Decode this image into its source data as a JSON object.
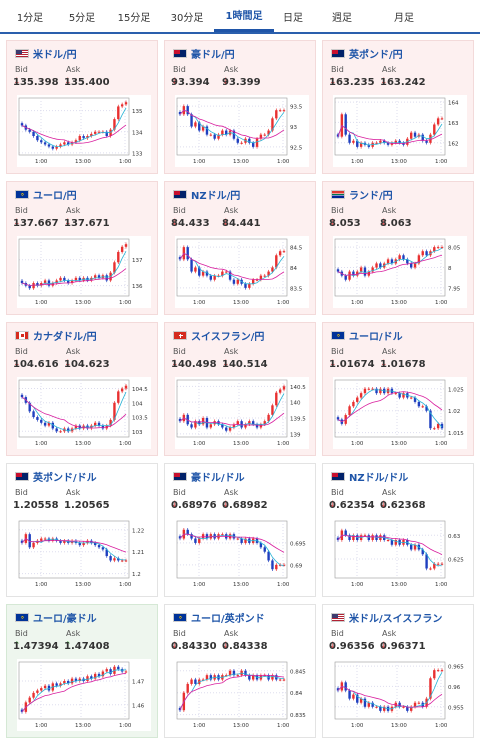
{
  "tabs": [
    {
      "label": "1分足",
      "active": false
    },
    {
      "label": "5分足",
      "active": false
    },
    {
      "label": "15分足",
      "active": false
    },
    {
      "label": "30分足",
      "active": false
    },
    {
      "label": "1時間足",
      "active": true
    },
    {
      "label": "日足",
      "active": false
    },
    {
      "label": "週足",
      "active": false
    },
    {
      "label": "月足",
      "active": false
    }
  ],
  "labels": {
    "bid": "Bid",
    "ask": "Ask"
  },
  "colors": {
    "up": "#e83030",
    "down": "#1f3fbf",
    "ma_short": "#28b4d6",
    "ma_long": "#d81e9e",
    "link": "#1f55a8"
  },
  "cards": [
    {
      "name": "米ドル/円",
      "bid": "135.398",
      "ask": "135.400",
      "dir": "down",
      "bg": "pink",
      "flag": "us",
      "yticks": [
        "135",
        "134",
        "133"
      ],
      "xticks": [
        "1:00",
        "13:00",
        "1:00"
      ],
      "series": [
        134.3,
        134.1,
        134.0,
        133.8,
        133.6,
        133.5,
        133.4,
        133.3,
        133.2,
        133.3,
        133.4,
        133.5,
        133.4,
        133.5,
        133.6,
        133.8,
        133.7,
        133.8,
        133.9,
        134.0,
        134.0,
        134.0,
        133.8,
        134.1,
        134.6,
        135.2,
        135.3,
        135.4
      ],
      "ylim": [
        132.9,
        135.6
      ]
    },
    {
      "name": "豪ドル/円",
      "bid": "93.394",
      "ask": "93.399",
      "dir": "down",
      "bg": "pink",
      "flag": "au",
      "yticks": [
        "93.5",
        "93",
        "92.5"
      ],
      "xticks": [
        "1:00",
        "13:00",
        "1:00"
      ],
      "series": [
        93.3,
        93.5,
        93.3,
        93.0,
        93.1,
        92.9,
        93.0,
        92.8,
        92.8,
        92.7,
        92.8,
        92.9,
        92.8,
        92.9,
        92.7,
        92.6,
        92.6,
        92.7,
        92.6,
        92.5,
        92.7,
        92.8,
        92.8,
        92.9,
        93.2,
        93.4,
        93.4,
        93.4
      ],
      "ylim": [
        92.3,
        93.7
      ]
    },
    {
      "name": "英ポンド/円",
      "bid": "163.235",
      "ask": "163.242",
      "dir": "down",
      "bg": "pink",
      "flag": "gb",
      "yticks": [
        "164",
        "163",
        "162"
      ],
      "xticks": [
        "1:00",
        "13:00",
        "1:00"
      ],
      "series": [
        162.3,
        163.4,
        162.4,
        162.0,
        162.1,
        161.8,
        162.0,
        161.9,
        161.8,
        162.0,
        162.0,
        162.1,
        162.0,
        161.9,
        162.0,
        162.1,
        162.0,
        161.9,
        162.2,
        162.5,
        162.3,
        162.4,
        162.1,
        162.0,
        162.4,
        162.9,
        163.2,
        163.2
      ],
      "ylim": [
        161.4,
        164.2
      ]
    },
    {
      "name": "ユーロ/円",
      "bid": "137.667",
      "ask": "137.671",
      "dir": "down",
      "bg": "pink",
      "flag": "eu",
      "yticks": [
        "137",
        "136"
      ],
      "xticks": [
        "1:00",
        "13:00",
        "1:00"
      ],
      "series": [
        136.1,
        136.0,
        135.9,
        136.1,
        136.0,
        136.1,
        136.2,
        136.0,
        136.1,
        136.2,
        136.3,
        136.2,
        136.1,
        136.2,
        136.3,
        136.2,
        136.3,
        136.2,
        136.3,
        136.4,
        136.3,
        136.4,
        136.2,
        136.5,
        136.9,
        137.3,
        137.5,
        137.6
      ],
      "ylim": [
        135.6,
        137.8
      ]
    },
    {
      "name": "NZドル/円",
      "bid": "84.433",
      "ask": "84.441",
      "dir": "down",
      "bg": "pink",
      "flag": "nz",
      "yticks": [
        "84.5",
        "84",
        "83.5"
      ],
      "xticks": [
        "1:00",
        "13:00",
        "1:00"
      ],
      "series": [
        84.2,
        84.5,
        84.2,
        83.9,
        84.0,
        83.8,
        83.9,
        83.8,
        83.7,
        83.8,
        83.8,
        83.9,
        83.9,
        83.7,
        83.6,
        83.7,
        83.6,
        83.5,
        83.6,
        83.7,
        83.7,
        83.8,
        83.8,
        83.9,
        84.0,
        84.3,
        84.4,
        84.4
      ],
      "ylim": [
        83.3,
        84.7
      ]
    },
    {
      "name": "ランド/円",
      "bid": "8.053",
      "ask": "8.063",
      "dir": "down",
      "bg": "pink",
      "flag": "za",
      "yticks": [
        "8.05",
        "8",
        "7.95"
      ],
      "xticks": [
        "1:00",
        "13:00",
        "1:00"
      ],
      "series": [
        7.99,
        7.98,
        7.97,
        7.99,
        7.98,
        7.99,
        8.0,
        7.98,
        7.99,
        8.0,
        8.01,
        8.0,
        8.01,
        8.02,
        8.01,
        8.02,
        8.03,
        8.02,
        8.01,
        8.0,
        8.01,
        8.03,
        8.04,
        8.03,
        8.04,
        8.05,
        8.05,
        8.05
      ],
      "ylim": [
        7.93,
        8.07
      ]
    },
    {
      "name": "カナダドル/円",
      "bid": "104.616",
      "ask": "104.623",
      "dir": "down",
      "bg": "pink",
      "flag": "ca",
      "yticks": [
        "104.5",
        "104",
        "103.5",
        "103"
      ],
      "xticks": [
        "1:00",
        "13:00",
        "1:00"
      ],
      "series": [
        104.2,
        104.0,
        103.7,
        103.5,
        103.4,
        103.3,
        103.2,
        103.3,
        103.1,
        103.0,
        103.0,
        103.1,
        103.0,
        103.1,
        103.2,
        103.1,
        103.2,
        103.1,
        103.2,
        103.3,
        103.2,
        103.1,
        103.2,
        103.4,
        104.0,
        104.4,
        104.5,
        104.6
      ],
      "ylim": [
        102.8,
        104.8
      ]
    },
    {
      "name": "スイスフラン/円",
      "bid": "140.498",
      "ask": "140.514",
      "dir": "down",
      "bg": "pink",
      "flag": "ch",
      "yticks": [
        "140.5",
        "140",
        "139.5",
        "139"
      ],
      "xticks": [
        "1:00",
        "13:00",
        "1:00"
      ],
      "series": [
        139.4,
        139.6,
        139.3,
        139.2,
        139.4,
        139.3,
        139.5,
        139.2,
        139.3,
        139.4,
        139.3,
        139.2,
        139.1,
        139.2,
        139.3,
        139.4,
        139.2,
        139.3,
        139.4,
        139.3,
        139.2,
        139.3,
        139.4,
        139.6,
        139.9,
        140.3,
        140.4,
        140.5
      ],
      "ylim": [
        138.9,
        140.7
      ]
    },
    {
      "name": "ユーロ/ドル",
      "bid": "1.01674",
      "ask": "1.01678",
      "dir": "down",
      "bg": "pink",
      "flag": "eu",
      "yticks": [
        "1.025",
        "1.02",
        "1.015"
      ],
      "xticks": [
        "1:00",
        "13:00",
        "1:00"
      ],
      "series": [
        1.018,
        1.017,
        1.019,
        1.021,
        1.022,
        1.023,
        1.024,
        1.025,
        1.025,
        1.025,
        1.024,
        1.025,
        1.024,
        1.025,
        1.024,
        1.024,
        1.023,
        1.024,
        1.023,
        1.023,
        1.022,
        1.021,
        1.021,
        1.02,
        1.016,
        1.016,
        1.017,
        1.016
      ],
      "ylim": [
        1.014,
        1.027
      ]
    },
    {
      "name": "英ポンド/ドル",
      "bid": "1.20558",
      "ask": "1.20565",
      "dir": "none",
      "bg": "white",
      "flag": "gb",
      "yticks": [
        "1.22",
        "1.21",
        "1.2"
      ],
      "xticks": [
        "1:00",
        "13:00",
        "1:00"
      ],
      "series": [
        1.214,
        1.218,
        1.212,
        1.214,
        1.215,
        1.216,
        1.216,
        1.215,
        1.216,
        1.215,
        1.214,
        1.215,
        1.214,
        1.215,
        1.214,
        1.213,
        1.214,
        1.215,
        1.214,
        1.213,
        1.212,
        1.211,
        1.208,
        1.206,
        1.207,
        1.206,
        1.206,
        1.206
      ],
      "ylim": [
        1.198,
        1.224
      ]
    },
    {
      "name": "豪ドル/ドル",
      "bid": "0.68976",
      "ask": "0.68982",
      "dir": "down",
      "bg": "white",
      "flag": "au",
      "yticks": [
        "0.695",
        "0.69"
      ],
      "xticks": [
        "1:00",
        "13:00",
        "1:00"
      ],
      "series": [
        0.696,
        0.698,
        0.697,
        0.696,
        0.695,
        0.696,
        0.697,
        0.696,
        0.697,
        0.696,
        0.697,
        0.697,
        0.696,
        0.697,
        0.696,
        0.696,
        0.695,
        0.696,
        0.695,
        0.696,
        0.695,
        0.694,
        0.693,
        0.691,
        0.689,
        0.69,
        0.69,
        0.69
      ],
      "ylim": [
        0.687,
        0.7
      ]
    },
    {
      "name": "NZドル/ドル",
      "bid": "0.62354",
      "ask": "0.62368",
      "dir": "down",
      "bg": "white",
      "flag": "nz",
      "yticks": [
        "0.63",
        "0.625"
      ],
      "xticks": [
        "1:00",
        "13:00",
        "1:00"
      ],
      "series": [
        0.629,
        0.631,
        0.63,
        0.629,
        0.63,
        0.629,
        0.63,
        0.63,
        0.629,
        0.63,
        0.629,
        0.63,
        0.629,
        0.629,
        0.628,
        0.629,
        0.628,
        0.629,
        0.628,
        0.627,
        0.628,
        0.627,
        0.626,
        0.623,
        0.623,
        0.624,
        0.624,
        0.624
      ],
      "ylim": [
        0.621,
        0.633
      ]
    },
    {
      "name": "ユーロ/豪ドル",
      "bid": "1.47394",
      "ask": "1.47408",
      "dir": "up",
      "bg": "green",
      "flag": "eu",
      "yticks": [
        "1.47",
        "1.46"
      ],
      "xticks": [
        "1:00",
        "13:00",
        "1:00"
      ],
      "series": [
        1.457,
        1.461,
        1.463,
        1.465,
        1.466,
        1.467,
        1.468,
        1.466,
        1.469,
        1.468,
        1.469,
        1.47,
        1.469,
        1.471,
        1.47,
        1.471,
        1.47,
        1.472,
        1.471,
        1.473,
        1.472,
        1.474,
        1.475,
        1.473,
        1.476,
        1.475,
        1.474,
        1.474
      ],
      "ylim": [
        1.454,
        1.478
      ]
    },
    {
      "name": "ユーロ/英ポンド",
      "bid": "0.84330",
      "ask": "0.84338",
      "dir": "down",
      "bg": "white",
      "flag": "eu",
      "yticks": [
        "0.845",
        "0.84",
        "0.835"
      ],
      "xticks": [
        "1:00",
        "13:00",
        "1:00"
      ],
      "series": [
        0.836,
        0.84,
        0.842,
        0.843,
        0.842,
        0.843,
        0.843,
        0.844,
        0.843,
        0.844,
        0.843,
        0.844,
        0.844,
        0.845,
        0.844,
        0.844,
        0.845,
        0.844,
        0.843,
        0.844,
        0.843,
        0.844,
        0.844,
        0.843,
        0.844,
        0.843,
        0.843,
        0.843
      ],
      "ylim": [
        0.834,
        0.847
      ]
    },
    {
      "name": "米ドル/スイスフラン",
      "bid": "0.96356",
      "ask": "0.96371",
      "dir": "down",
      "bg": "white",
      "flag": "us",
      "yticks": [
        "0.965",
        "0.96",
        "0.955"
      ],
      "xticks": [
        "1:00",
        "13:00",
        "1:00"
      ],
      "series": [
        0.959,
        0.961,
        0.959,
        0.957,
        0.958,
        0.956,
        0.957,
        0.955,
        0.956,
        0.955,
        0.955,
        0.954,
        0.955,
        0.954,
        0.955,
        0.956,
        0.955,
        0.955,
        0.954,
        0.955,
        0.956,
        0.956,
        0.955,
        0.957,
        0.962,
        0.964,
        0.964,
        0.964
      ],
      "ylim": [
        0.952,
        0.966
      ]
    }
  ]
}
